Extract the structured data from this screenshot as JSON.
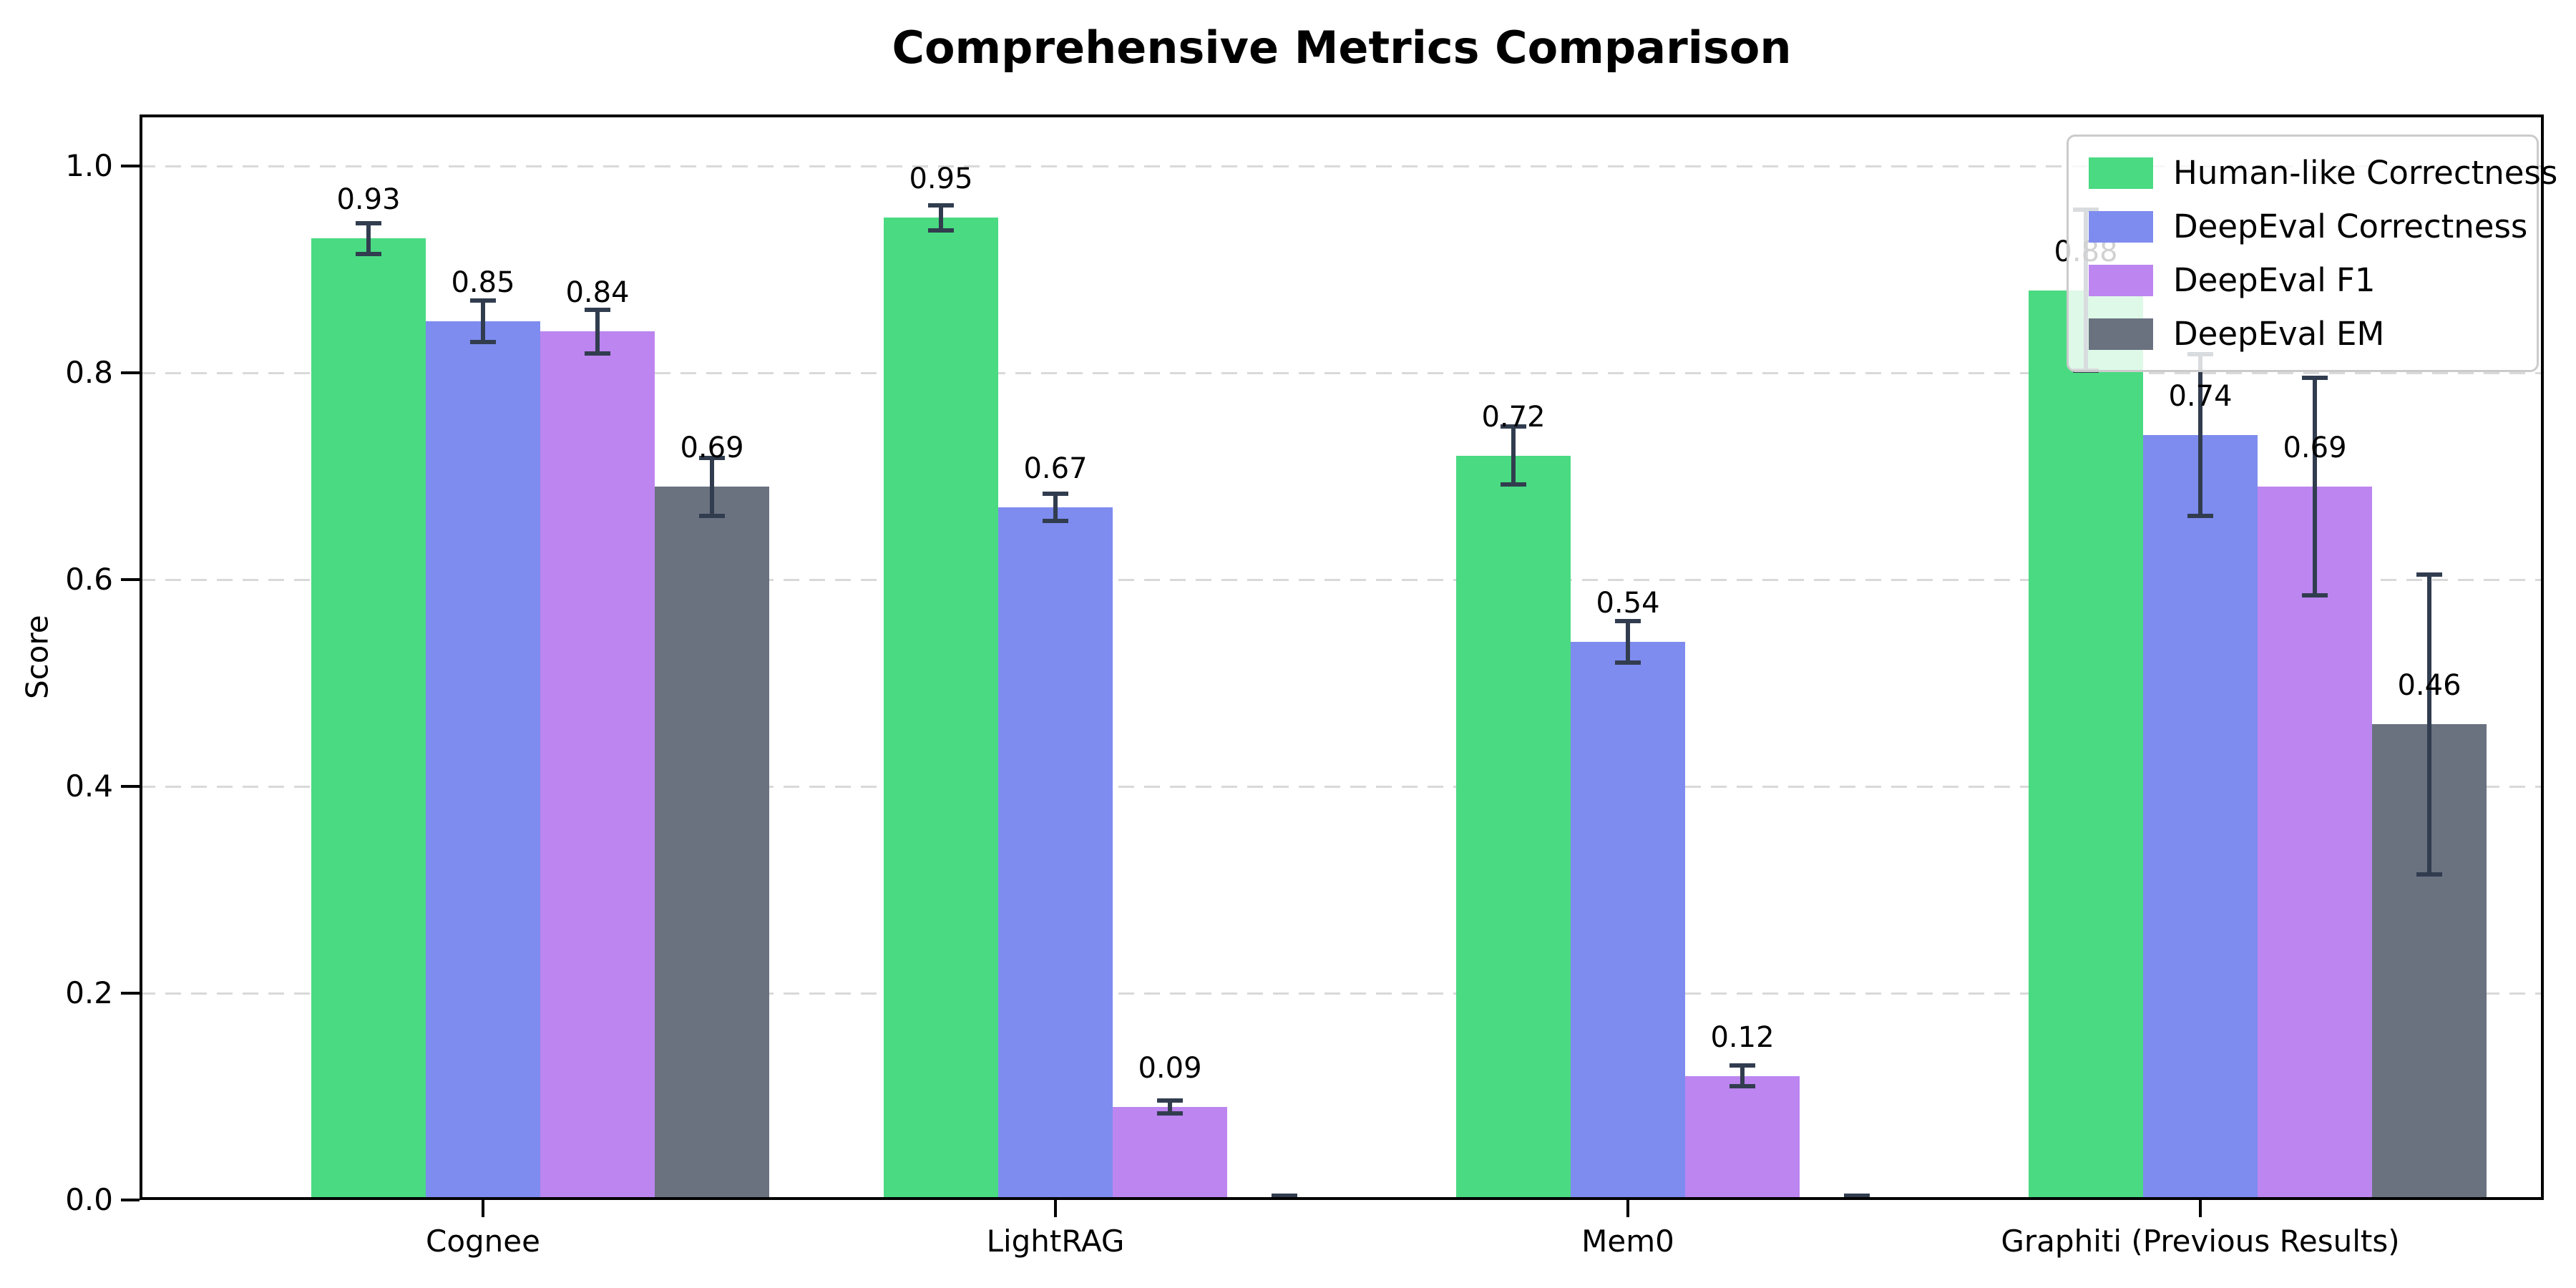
{
  "chart_data": {
    "type": "bar",
    "title": "Comprehensive Metrics Comparison",
    "xlabel": "",
    "ylabel": "Score",
    "categories": [
      "Cognee",
      "LightRAG",
      "Mem0",
      "Graphiti (Previous Results)"
    ],
    "series": [
      {
        "name": "Human-like Correctness",
        "color": "#4ada82",
        "values": [
          0.93,
          0.95,
          0.72,
          0.88
        ],
        "errors": [
          0.015,
          0.012,
          0.028,
          0.078
        ],
        "labels": [
          "0.93",
          "0.95",
          "0.72",
          "0.88"
        ]
      },
      {
        "name": "DeepEval Correctness",
        "color": "#7e8cef",
        "values": [
          0.85,
          0.67,
          0.54,
          0.74
        ],
        "errors": [
          0.02,
          0.013,
          0.02,
          0.078
        ],
        "labels": [
          "0.85",
          "0.67",
          "0.54",
          "0.74"
        ]
      },
      {
        "name": "DeepEval F1",
        "color": "#bc85f0",
        "values": [
          0.84,
          0.09,
          0.12,
          0.69
        ],
        "errors": [
          0.021,
          0.006,
          0.01,
          0.105
        ],
        "labels": [
          "0.84",
          "0.09",
          "0.12",
          "0.69"
        ]
      },
      {
        "name": "DeepEval EM",
        "color": "#6a7280",
        "values": [
          0.69,
          0.0,
          0.0,
          0.46
        ],
        "errors": [
          0.028,
          0.004,
          0.004,
          0.145
        ],
        "labels": [
          "0.69",
          "",
          "",
          "0.46"
        ]
      }
    ],
    "ylim": [
      0,
      1.05
    ],
    "yticks": [
      0.0,
      0.2,
      0.4,
      0.6,
      0.8,
      1.0
    ],
    "ytick_labels": [
      "0.0",
      "0.2",
      "0.4",
      "0.6",
      "0.8",
      "1.0"
    ],
    "grid": "horizontal-dashed",
    "legend_position": "upper right",
    "errorbar_color": "#313d4f"
  }
}
